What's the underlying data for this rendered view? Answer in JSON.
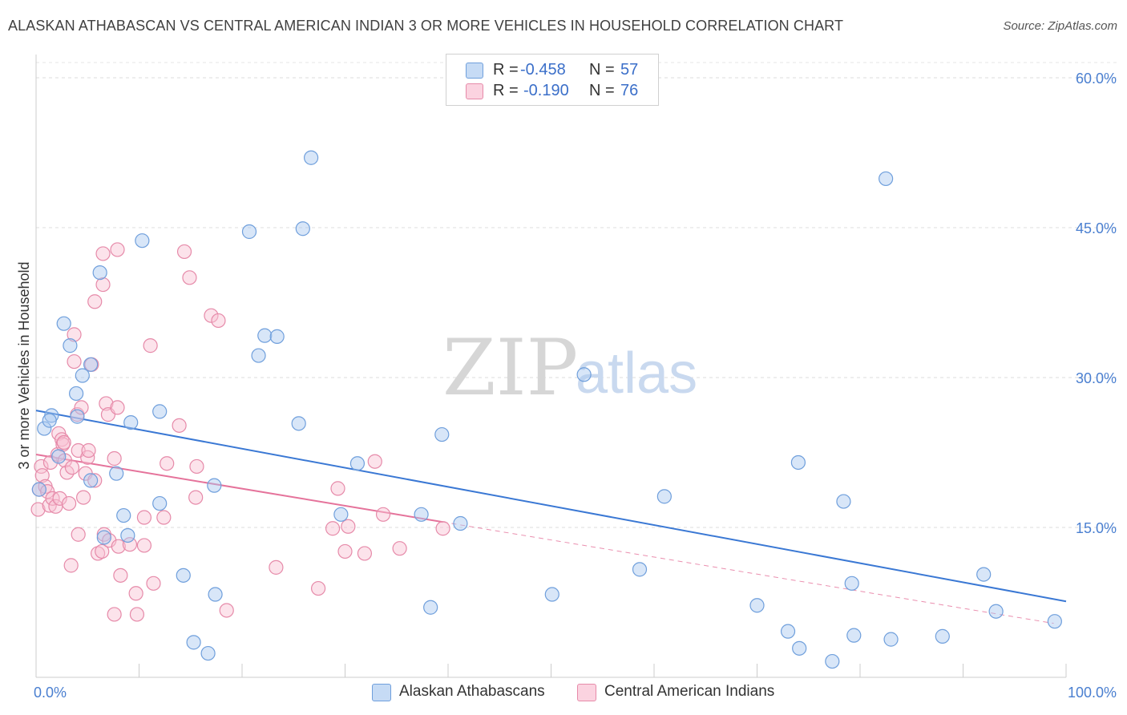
{
  "title": "ALASKAN ATHABASCAN VS CENTRAL AMERICAN INDIAN 3 OR MORE VEHICLES IN HOUSEHOLD CORRELATION CHART",
  "source": "Source: ZipAtlas.com",
  "watermark": {
    "zip": "ZIP",
    "atlas": "atlas"
  },
  "legend": {
    "items": [
      {
        "r_label": "R =",
        "r_value": "-0.458",
        "n_label": "N =",
        "n_value": "57",
        "color": "#a9c8f0",
        "stroke": "#6f9fdc"
      },
      {
        "r_label": "R =",
        "r_value": "-0.190",
        "n_label": "N =",
        "n_value": "76",
        "color": "#f8c0d2",
        "stroke": "#e68aa9"
      }
    ]
  },
  "bottom_legend": {
    "items": [
      {
        "label": "Alaskan Athabascans",
        "color": "#a9c8f0",
        "stroke": "#6f9fdc"
      },
      {
        "label": "Central American Indians",
        "color": "#f8c0d2",
        "stroke": "#e68aa9"
      }
    ]
  },
  "colors": {
    "blue": "#3a78d4",
    "pink": "#e5739b",
    "tick": "#4a7fd0",
    "grid": "#dddddd"
  },
  "chart_data": {
    "type": "scatter",
    "title": "ALASKAN ATHABASCAN VS CENTRAL AMERICAN INDIAN 3 OR MORE VEHICLES IN HOUSEHOLD CORRELATION CHART",
    "xlabel": "",
    "ylabel": "3 or more Vehicles in Household",
    "xlim": [
      0,
      100
    ],
    "ylim": [
      0,
      60
    ],
    "x_ticks": [
      {
        "v": 0,
        "label": "0.0%"
      },
      {
        "v": 100,
        "label": "100.0%"
      }
    ],
    "y_ticks": [
      {
        "v": 15,
        "label": "15.0%"
      },
      {
        "v": 30,
        "label": "30.0%"
      },
      {
        "v": 45,
        "label": "45.0%"
      },
      {
        "v": 60,
        "label": "60.0%"
      }
    ],
    "grid": true,
    "legend_position": "top-center",
    "series": [
      {
        "name": "Alaskan Athabascans",
        "r": -0.458,
        "n": 57,
        "fill": "#a9c8f0",
        "stroke": "#6f9fdc",
        "trend": {
          "x0": 0,
          "y0": 26.7,
          "x1": 100,
          "y1": 7.6,
          "solid_to": 100
        },
        "points": [
          [
            0.3,
            18.8
          ],
          [
            0.8,
            24.9
          ],
          [
            1.5,
            26.2
          ],
          [
            1.3,
            25.7
          ],
          [
            2.2,
            22.1
          ],
          [
            2.7,
            35.4
          ],
          [
            3.3,
            33.2
          ],
          [
            3.9,
            28.4
          ],
          [
            4.0,
            26.1
          ],
          [
            4.5,
            30.2
          ],
          [
            5.3,
            31.3
          ],
          [
            5.3,
            19.7
          ],
          [
            6.2,
            40.5
          ],
          [
            6.6,
            14.0
          ],
          [
            7.8,
            20.4
          ],
          [
            8.5,
            16.2
          ],
          [
            8.9,
            14.2
          ],
          [
            9.2,
            25.5
          ],
          [
            10.3,
            43.7
          ],
          [
            12.0,
            26.6
          ],
          [
            12.0,
            17.4
          ],
          [
            14.3,
            10.2
          ],
          [
            15.3,
            3.5
          ],
          [
            16.7,
            2.4
          ],
          [
            17.3,
            19.2
          ],
          [
            17.4,
            8.3
          ],
          [
            20.7,
            44.6
          ],
          [
            21.6,
            32.2
          ],
          [
            22.2,
            34.2
          ],
          [
            23.4,
            34.1
          ],
          [
            25.5,
            25.4
          ],
          [
            25.9,
            44.9
          ],
          [
            26.7,
            52.0
          ],
          [
            29.6,
            16.3
          ],
          [
            31.2,
            21.4
          ],
          [
            37.4,
            16.3
          ],
          [
            38.3,
            7.0
          ],
          [
            39.4,
            24.3
          ],
          [
            41.2,
            15.4
          ],
          [
            50.1,
            8.3
          ],
          [
            53.2,
            30.3
          ],
          [
            58.6,
            10.8
          ],
          [
            61.0,
            18.1
          ],
          [
            70.0,
            7.2
          ],
          [
            73.0,
            4.6
          ],
          [
            74.1,
            2.9
          ],
          [
            74.0,
            21.5
          ],
          [
            77.3,
            1.6
          ],
          [
            78.4,
            17.6
          ],
          [
            79.2,
            9.4
          ],
          [
            79.4,
            4.2
          ],
          [
            82.5,
            49.9
          ],
          [
            83.0,
            3.8
          ],
          [
            88.0,
            4.1
          ],
          [
            92.0,
            10.3
          ],
          [
            93.2,
            6.6
          ],
          [
            98.9,
            5.6
          ]
        ]
      },
      {
        "name": "Central American Indians",
        "r": -0.19,
        "n": 76,
        "fill": "#f8c0d2",
        "stroke": "#e68aa9",
        "trend": {
          "x0": 0,
          "y0": 22.3,
          "x1": 98.8,
          "y1": 5.4,
          "solid_to": 39.5
        },
        "points": [
          [
            0.2,
            16.8
          ],
          [
            0.3,
            18.8
          ],
          [
            0.5,
            21.1
          ],
          [
            0.6,
            20.2
          ],
          [
            0.9,
            19.1
          ],
          [
            1.1,
            18.6
          ],
          [
            1.3,
            17.2
          ],
          [
            1.4,
            21.5
          ],
          [
            1.6,
            17.9
          ],
          [
            1.9,
            17.1
          ],
          [
            2.1,
            22.3
          ],
          [
            2.2,
            24.4
          ],
          [
            2.3,
            17.9
          ],
          [
            2.5,
            23.8
          ],
          [
            2.6,
            23.3
          ],
          [
            2.7,
            23.5
          ],
          [
            2.8,
            21.7
          ],
          [
            3.0,
            20.5
          ],
          [
            3.2,
            17.4
          ],
          [
            3.4,
            11.2
          ],
          [
            3.5,
            21.0
          ],
          [
            3.7,
            34.3
          ],
          [
            3.7,
            31.6
          ],
          [
            4.0,
            26.3
          ],
          [
            4.1,
            14.3
          ],
          [
            4.1,
            22.7
          ],
          [
            4.4,
            27.0
          ],
          [
            4.6,
            18.0
          ],
          [
            4.8,
            20.4
          ],
          [
            5.0,
            22.0
          ],
          [
            5.1,
            22.7
          ],
          [
            5.4,
            31.3
          ],
          [
            5.7,
            19.7
          ],
          [
            5.7,
            37.6
          ],
          [
            6.0,
            12.4
          ],
          [
            6.4,
            12.6
          ],
          [
            6.5,
            39.3
          ],
          [
            6.5,
            42.4
          ],
          [
            6.6,
            14.3
          ],
          [
            6.8,
            27.4
          ],
          [
            7.0,
            26.3
          ],
          [
            7.1,
            13.7
          ],
          [
            7.6,
            21.9
          ],
          [
            7.6,
            6.3
          ],
          [
            7.9,
            27.0
          ],
          [
            7.9,
            42.8
          ],
          [
            8.0,
            13.1
          ],
          [
            8.2,
            10.2
          ],
          [
            9.1,
            13.3
          ],
          [
            9.7,
            8.4
          ],
          [
            9.8,
            6.3
          ],
          [
            10.5,
            16.0
          ],
          [
            10.5,
            13.2
          ],
          [
            11.1,
            33.2
          ],
          [
            11.4,
            9.4
          ],
          [
            12.4,
            16.0
          ],
          [
            12.7,
            21.4
          ],
          [
            13.9,
            25.2
          ],
          [
            14.4,
            42.6
          ],
          [
            14.9,
            40.0
          ],
          [
            15.5,
            18.0
          ],
          [
            15.6,
            21.1
          ],
          [
            17.0,
            36.2
          ],
          [
            17.7,
            35.7
          ],
          [
            18.5,
            6.7
          ],
          [
            23.3,
            11.0
          ],
          [
            27.4,
            8.9
          ],
          [
            28.8,
            14.9
          ],
          [
            29.3,
            18.9
          ],
          [
            30.0,
            12.6
          ],
          [
            30.3,
            15.1
          ],
          [
            31.9,
            12.4
          ],
          [
            32.9,
            21.6
          ],
          [
            33.7,
            16.3
          ],
          [
            35.3,
            12.9
          ],
          [
            39.5,
            14.9
          ]
        ]
      }
    ]
  }
}
